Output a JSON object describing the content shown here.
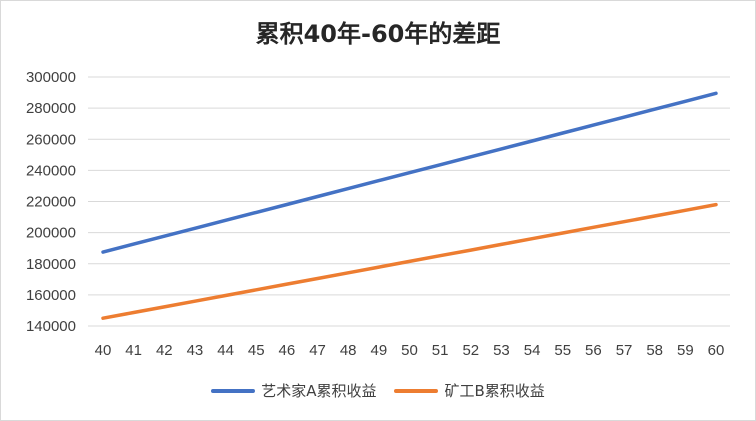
{
  "chart_data": {
    "type": "line",
    "title": "累积40年-60年的差距",
    "xlabel": "",
    "ylabel": "",
    "x": [
      "40",
      "41",
      "42",
      "43",
      "44",
      "45",
      "46",
      "47",
      "48",
      "49",
      "50",
      "51",
      "52",
      "53",
      "54",
      "55",
      "56",
      "57",
      "58",
      "59",
      "60"
    ],
    "y_ticks": [
      "140000",
      "160000",
      "180000",
      "200000",
      "220000",
      "240000",
      "260000",
      "280000",
      "300000"
    ],
    "ylim": [
      140000,
      300000
    ],
    "grid": true,
    "legend_position": "bottom",
    "series": [
      {
        "name": "艺术家A累积收益",
        "color": "#4472C4",
        "values": [
          187500,
          192600,
          197700,
          202800,
          207900,
          213000,
          218100,
          223200,
          228300,
          233400,
          238500,
          243600,
          248700,
          253800,
          258900,
          264000,
          269100,
          274200,
          279300,
          284400,
          289500
        ]
      },
      {
        "name": "矿工B累积收益",
        "color": "#ED7D31",
        "values": [
          145000,
          148650,
          152300,
          155950,
          159600,
          163250,
          166900,
          170550,
          174200,
          177850,
          181500,
          185150,
          188800,
          192450,
          196100,
          199750,
          203400,
          207050,
          210700,
          214350,
          218000
        ]
      }
    ]
  }
}
